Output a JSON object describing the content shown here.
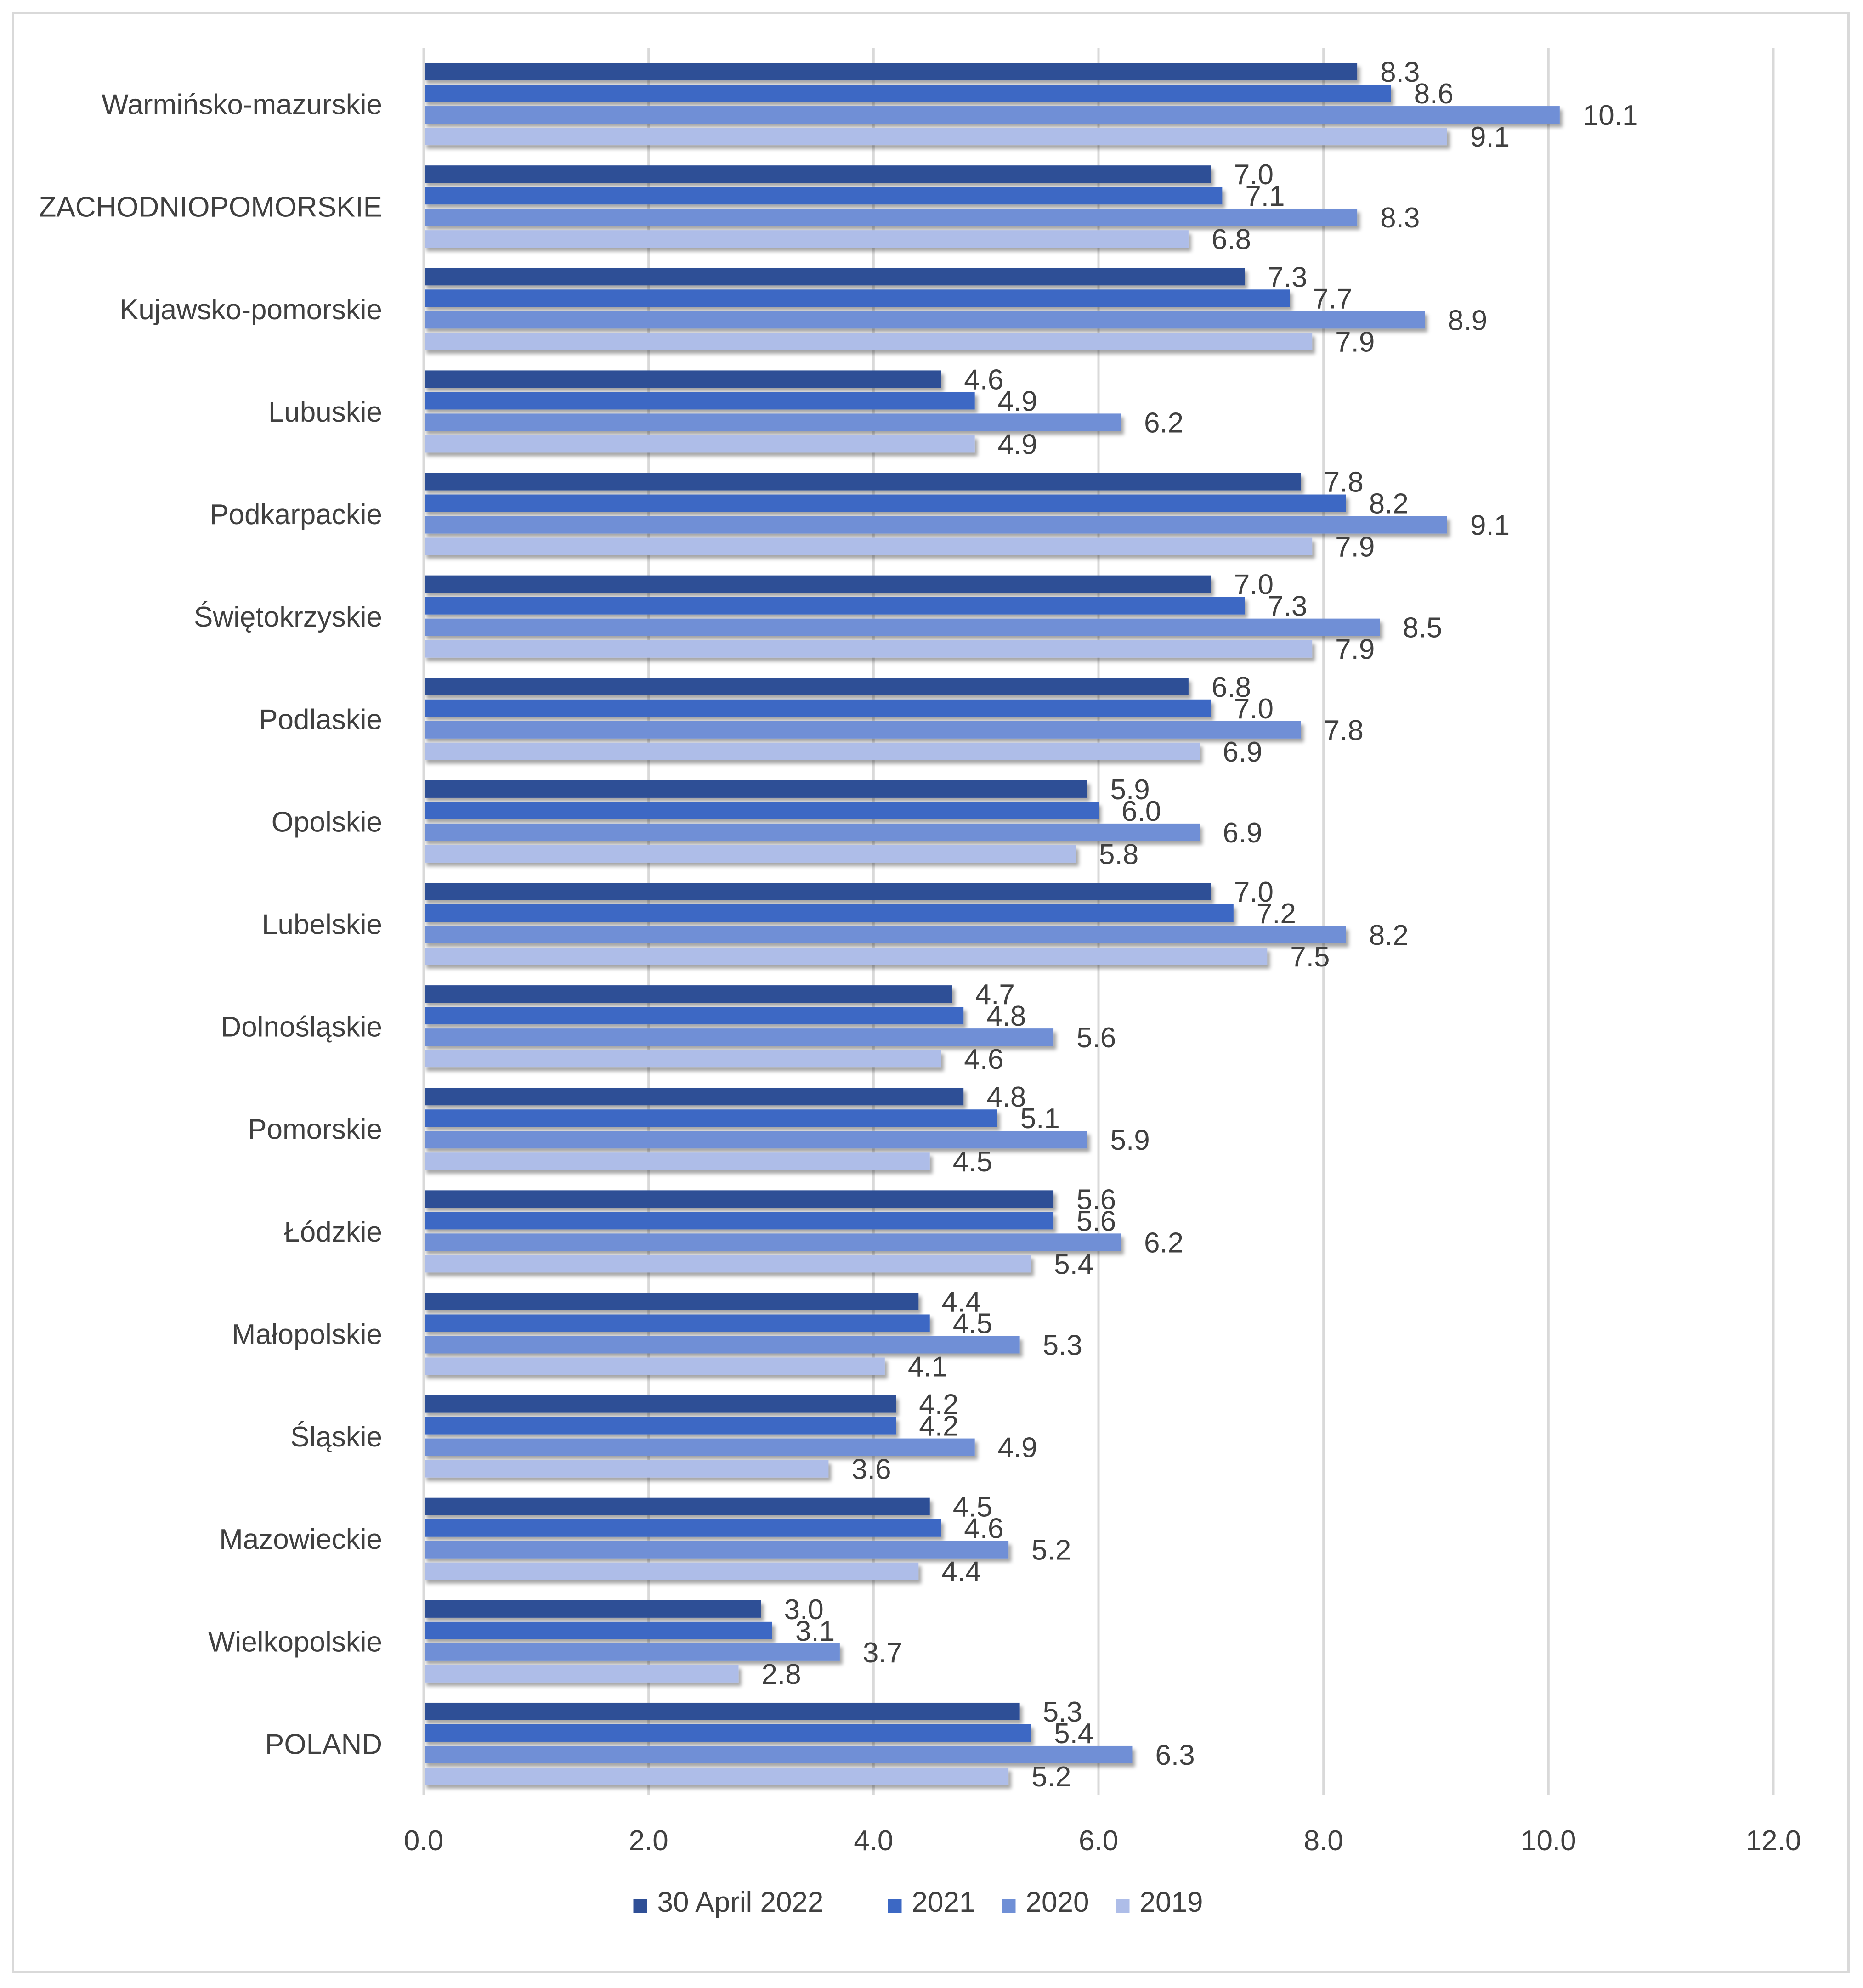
{
  "chart_data": {
    "type": "bar",
    "orientation": "horizontal",
    "title": "",
    "xlabel": "",
    "ylabel": "",
    "xlim": [
      0,
      12
    ],
    "x_ticks": [
      "0.0",
      "2.0",
      "4.0",
      "6.0",
      "8.0",
      "10.0",
      "12.0"
    ],
    "grid": true,
    "legend_position": "bottom",
    "categories": [
      "Warmińsko-mazurskie",
      "ZACHODNIOPOMORSKIE",
      "Kujawsko-pomorskie",
      "Lubuskie",
      "Podkarpackie",
      "Świętokrzyskie",
      "Podlaskie",
      "Opolskie",
      "Lubelskie",
      "Dolnośląskie",
      "Pomorskie",
      "Łódzkie",
      "Małopolskie",
      "Śląskie",
      "Mazowieckie",
      "Wielkopolskie",
      "POLAND"
    ],
    "series": [
      {
        "name": "30 April 2022",
        "color": "#2f4f96",
        "values": [
          8.3,
          7.0,
          7.3,
          4.6,
          7.8,
          7.0,
          6.8,
          5.9,
          7.0,
          4.7,
          4.8,
          5.6,
          4.4,
          4.2,
          4.5,
          3.0,
          5.3
        ],
        "labels": [
          "8.3",
          "7.0",
          "7.3",
          "4.6",
          "7.8",
          "7.0",
          "6.8",
          "5.9",
          "7.0",
          "4.7",
          "4.8",
          "5.6",
          "4.4",
          "4.2",
          "4.5",
          "3.0",
          "5.3"
        ]
      },
      {
        "name": "2021",
        "color": "#3c68c4",
        "values": [
          8.6,
          7.1,
          7.7,
          4.9,
          8.2,
          7.3,
          7.0,
          6.0,
          7.2,
          4.8,
          5.1,
          5.6,
          4.5,
          4.2,
          4.6,
          3.1,
          5.4
        ],
        "labels": [
          "8.6",
          "7.1",
          "7.7",
          "4.9",
          "8.2",
          "7.3",
          "7.0",
          "6.0",
          "7.2",
          "4.8",
          "5.1",
          "5.6",
          "4.5",
          "4.2",
          "4.6",
          "3.1",
          "5.4"
        ]
      },
      {
        "name": "2020",
        "color": "#6f8fd6",
        "values": [
          10.1,
          8.3,
          8.9,
          6.2,
          9.1,
          8.5,
          7.8,
          6.9,
          8.2,
          5.6,
          5.9,
          6.2,
          5.3,
          4.9,
          5.2,
          3.7,
          6.3
        ],
        "labels": [
          "10.1",
          "8.3",
          "8.9",
          "6.2",
          "9.1",
          "8.5",
          "7.8",
          "6.9",
          "8.2",
          "5.6",
          "5.9",
          "6.2",
          "5.3",
          "4.9",
          "5.2",
          "3.7",
          "6.3"
        ]
      },
      {
        "name": "2019",
        "color": "#aebde8",
        "values": [
          9.1,
          6.8,
          7.9,
          4.9,
          7.9,
          7.9,
          6.9,
          5.8,
          7.5,
          4.6,
          4.5,
          5.4,
          4.1,
          3.6,
          4.4,
          2.8,
          5.2
        ],
        "labels": [
          "9.1",
          "6.8",
          "7.9",
          "4.9",
          "7.9",
          "7.9",
          "6.9",
          "5.8",
          "7.5",
          "4.6",
          "4.5",
          "5.4",
          "4.1",
          "3.6",
          "4.4",
          "2.8",
          "5.2"
        ]
      }
    ]
  }
}
